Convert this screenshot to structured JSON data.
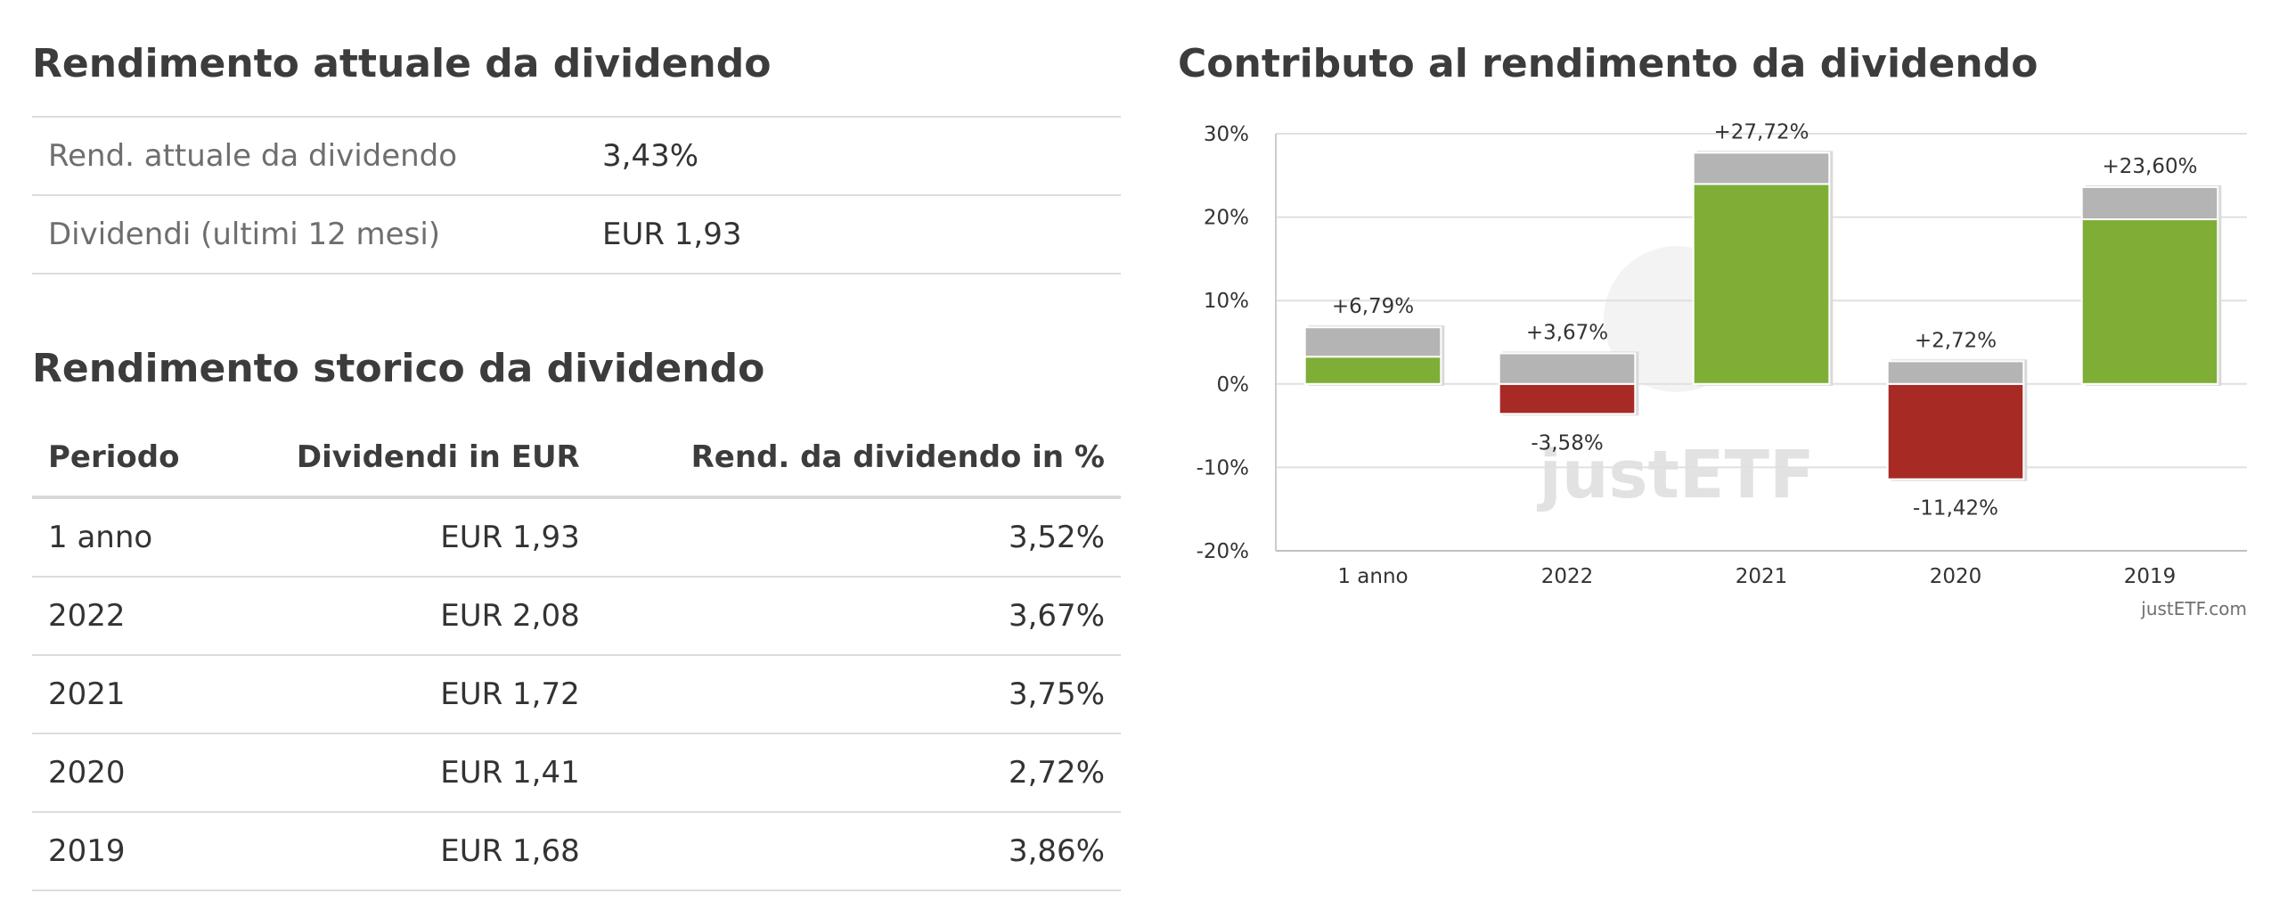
{
  "current_yield": {
    "title": "Rendimento attuale da dividendo",
    "rows": [
      {
        "label": "Rend. attuale da dividendo",
        "value": "3,43%"
      },
      {
        "label": "Dividendi (ultimi 12 mesi)",
        "value": "EUR 1,93"
      }
    ]
  },
  "historical_yield": {
    "title": "Rendimento storico da dividendo",
    "headers": [
      "Periodo",
      "Dividendi in EUR",
      "Rend. da dividendo in %"
    ],
    "rows": [
      [
        "1 anno",
        "EUR 1,93",
        "3,52%"
      ],
      [
        "2022",
        "EUR 2,08",
        "3,67%"
      ],
      [
        "2021",
        "EUR 1,72",
        "3,75%"
      ],
      [
        "2020",
        "EUR 1,41",
        "2,72%"
      ],
      [
        "2019",
        "EUR 1,68",
        "3,86%"
      ]
    ]
  },
  "chart_title": "Contributo al rendimento da dividendo",
  "chart_data": {
    "type": "bar",
    "categories": [
      "1 anno",
      "2022",
      "2021",
      "2020",
      "2019"
    ],
    "series": [
      {
        "values": [
          3.27,
          -3.58,
          23.97,
          -11.42,
          19.74
        ]
      },
      {
        "values": [
          3.52,
          3.67,
          3.75,
          2.72,
          3.86
        ]
      }
    ],
    "data_labels_top": [
      "+6,79%",
      "+3,67%",
      "+27,72%",
      "+2,72%",
      "+23,60%"
    ],
    "data_labels_bottom": [
      "",
      "-3,58%",
      "",
      "-11,42%",
      ""
    ],
    "y_ticks": [
      "30%",
      "20%",
      "10%",
      "0%",
      "-10%",
      "-20%"
    ],
    "ylim": [
      -20,
      30
    ],
    "grid": true,
    "colors": {
      "positive": "#7fae37",
      "negative": "#a72a24",
      "dividend": "#b4b4b4"
    },
    "credit": "justETF.com",
    "watermark": "justETF"
  }
}
